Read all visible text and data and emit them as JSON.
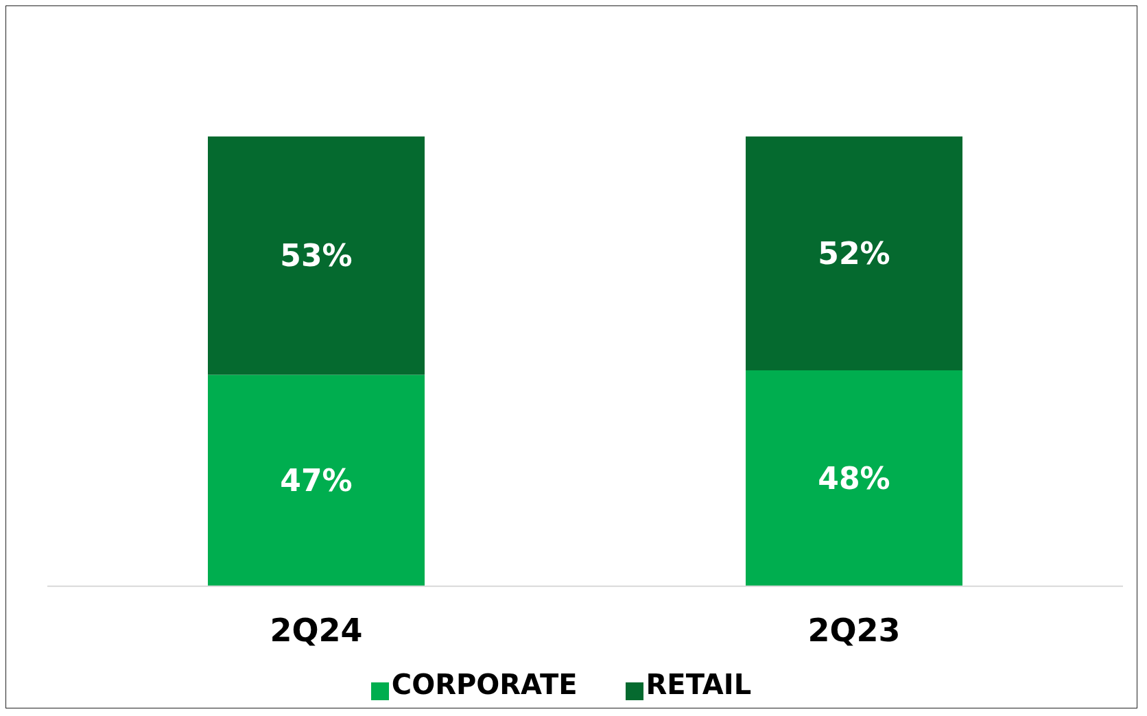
{
  "chart_data": {
    "type": "bar",
    "stacked": true,
    "categories": [
      "2Q24",
      "2Q23"
    ],
    "series": [
      {
        "name": "CORPORATE",
        "color": "#00ae4f",
        "values": [
          47,
          48
        ],
        "value_labels": [
          "47%",
          "48%"
        ]
      },
      {
        "name": "RETAIL",
        "color": "#056a2f",
        "values": [
          53,
          52
        ],
        "value_labels": [
          "53%",
          "52%"
        ]
      }
    ],
    "legend": "bottom",
    "grid": false
  }
}
